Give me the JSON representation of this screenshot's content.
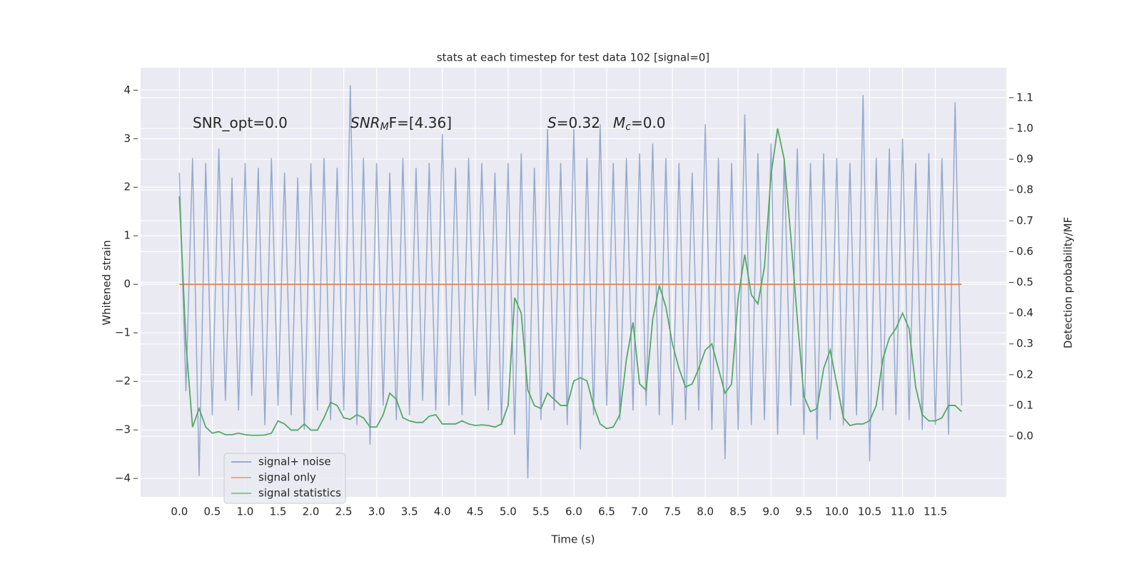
{
  "chart_data": {
    "type": "line",
    "title": "stats at each timestep for test data 102 [signal=0]",
    "xlabel": "Time (s)",
    "ylabel": "Whitened strain",
    "y2label": "Detection probability/MF",
    "grid": true,
    "legend": "lower left",
    "xlim": [
      -0.59,
      12.58
    ],
    "ylim": [
      -4.38,
      4.46
    ],
    "y2lim": [
      -0.197,
      1.197
    ],
    "xticks": [
      {
        "value": 0,
        "label": "0.0"
      },
      {
        "value": 0.5,
        "label": "0.5"
      },
      {
        "value": 1,
        "label": "1.0"
      },
      {
        "value": 1.5,
        "label": "1.5"
      },
      {
        "value": 2,
        "label": "2.0"
      },
      {
        "value": 2.5,
        "label": "2.5"
      },
      {
        "value": 3,
        "label": "3.0"
      },
      {
        "value": 3.5,
        "label": "3.5"
      },
      {
        "value": 4,
        "label": "4.0"
      },
      {
        "value": 4.5,
        "label": "4.5"
      },
      {
        "value": 5,
        "label": "5.0"
      },
      {
        "value": 5.5,
        "label": "5.5"
      },
      {
        "value": 6,
        "label": "6.0"
      },
      {
        "value": 6.5,
        "label": "6.5"
      },
      {
        "value": 7,
        "label": "7.0"
      },
      {
        "value": 7.5,
        "label": "7.5"
      },
      {
        "value": 8,
        "label": "8.0"
      },
      {
        "value": 8.5,
        "label": "8.5"
      },
      {
        "value": 9,
        "label": "9.0"
      },
      {
        "value": 9.5,
        "label": "9.5"
      },
      {
        "value": 10,
        "label": "10.0"
      },
      {
        "value": 10.5,
        "label": "10.5"
      },
      {
        "value": 11,
        "label": "11.0"
      },
      {
        "value": 11.5,
        "label": "11.5"
      }
    ],
    "yticks": [
      {
        "value": -4,
        "label": "−4"
      },
      {
        "value": -3,
        "label": "−3"
      },
      {
        "value": -2,
        "label": "−2"
      },
      {
        "value": -1,
        "label": "−1"
      },
      0,
      1,
      2,
      3,
      4
    ],
    "y2ticks": [
      {
        "value": 0,
        "label": "0.0"
      },
      {
        "value": 0.1,
        "label": "0.1"
      },
      {
        "value": 0.2,
        "label": "0.2"
      },
      {
        "value": 0.3,
        "label": "0.3"
      },
      {
        "value": 0.4,
        "label": "0.4"
      },
      {
        "value": 0.5,
        "label": "0.5"
      },
      {
        "value": 0.6,
        "label": "0.6"
      },
      {
        "value": 0.7,
        "label": "0.7"
      },
      {
        "value": 0.8,
        "label": "0.8"
      },
      {
        "value": 0.9,
        "label": "0.9"
      },
      {
        "value": 1,
        "label": "1.0"
      },
      {
        "value": 1.1,
        "label": "1.1"
      }
    ],
    "annotations": [
      {
        "main": "SNR_opt=0.0",
        "sub": "",
        "rest": ""
      },
      {
        "main": "SNR",
        "sub": "M",
        "rest": "F=[4.36]"
      },
      {
        "main": "S",
        "sub": "",
        "rest": "=0.32"
      },
      {
        "main": "M",
        "sub": "c",
        "rest": "=0.0"
      }
    ],
    "x": [
      0,
      0.1,
      0.2,
      0.3,
      0.4,
      0.5,
      0.6,
      0.7,
      0.8,
      0.9,
      1,
      1.1,
      1.2,
      1.3,
      1.4,
      1.5,
      1.6,
      1.7,
      1.8,
      1.9,
      2,
      2.1,
      2.2,
      2.3,
      2.4,
      2.5,
      2.6,
      2.7,
      2.8,
      2.9,
      3,
      3.1,
      3.2,
      3.3,
      3.4,
      3.5,
      3.6,
      3.7,
      3.8,
      3.9,
      4,
      4.1,
      4.2,
      4.3,
      4.4,
      4.5,
      4.6,
      4.7,
      4.8,
      4.9,
      5,
      5.1,
      5.2,
      5.3,
      5.4,
      5.5,
      5.6,
      5.7,
      5.8,
      5.9,
      6,
      6.1,
      6.2,
      6.3,
      6.4,
      6.5,
      6.6,
      6.7,
      6.8,
      6.9,
      7,
      7.1,
      7.2,
      7.3,
      7.4,
      7.5,
      7.6,
      7.7,
      7.8,
      7.9,
      8,
      8.1,
      8.2,
      8.3,
      8.4,
      8.5,
      8.6,
      8.7,
      8.8,
      8.9,
      9,
      9.1,
      9.2,
      9.3,
      9.4,
      9.5,
      9.6,
      9.7,
      9.8,
      9.9,
      10,
      10.1,
      10.2,
      10.3,
      10.4,
      10.5,
      10.6,
      10.7,
      10.8,
      10.9,
      11,
      11.1,
      11.2,
      11.3,
      11.4,
      11.5,
      11.6,
      11.7,
      11.8,
      11.9
    ],
    "series": [
      {
        "name": "signal+ noise",
        "color": "#4c72b0",
        "values": [
          2.3,
          -2.2,
          2.6,
          -3.95,
          2.5,
          -2.7,
          2.8,
          -2.4,
          2.2,
          -2.6,
          2.5,
          -2.3,
          2.4,
          -2.9,
          2.6,
          -2.5,
          2.3,
          -2.7,
          2.2,
          -3.0,
          2.5,
          -2.6,
          2.6,
          -2.8,
          2.4,
          -2.6,
          4.1,
          -2.9,
          2.6,
          -3.3,
          2.5,
          -2.5,
          2.3,
          -2.8,
          2.6,
          -2.7,
          2.4,
          -2.4,
          2.5,
          -2.6,
          3.1,
          -2.5,
          2.4,
          -2.7,
          2.6,
          -2.3,
          2.5,
          -2.6,
          2.3,
          -2.9,
          2.5,
          -3.1,
          2.7,
          -4.0,
          2.4,
          -2.8,
          3.2,
          -2.6,
          2.5,
          -2.9,
          3.2,
          -3.4,
          2.6,
          -2.7,
          3.3,
          -2.5,
          2.5,
          -2.8,
          2.6,
          -2.6,
          2.7,
          -2.5,
          2.9,
          -2.7,
          2.6,
          -2.9,
          2.5,
          -2.8,
          2.3,
          -2.6,
          3.3,
          -3.0,
          2.6,
          -3.6,
          2.5,
          -3.0,
          3.5,
          -2.9,
          2.7,
          -2.8,
          2.9,
          -3.1,
          2.6,
          -2.5,
          2.8,
          -3.1,
          2.5,
          -3.2,
          2.7,
          -2.8,
          2.6,
          -2.9,
          2.5,
          -2.7,
          3.9,
          -3.65,
          2.6,
          -2.6,
          2.8,
          -2.7,
          3.0,
          -2.8,
          2.5,
          -3.0,
          2.7,
          -2.9,
          2.6,
          -3.1,
          3.75,
          -2.5
        ]
      },
      {
        "name": "signal only",
        "color": "#dd8452",
        "values": [
          0,
          0,
          0,
          0,
          0,
          0,
          0,
          0,
          0,
          0,
          0,
          0,
          0,
          0,
          0,
          0,
          0,
          0,
          0,
          0,
          0,
          0,
          0,
          0,
          0,
          0,
          0,
          0,
          0,
          0,
          0,
          0,
          0,
          0,
          0,
          0,
          0,
          0,
          0,
          0,
          0,
          0,
          0,
          0,
          0,
          0,
          0,
          0,
          0,
          0,
          0,
          0,
          0,
          0,
          0,
          0,
          0,
          0,
          0,
          0,
          0,
          0,
          0,
          0,
          0,
          0,
          0,
          0,
          0,
          0,
          0,
          0,
          0,
          0,
          0,
          0,
          0,
          0,
          0,
          0,
          0,
          0,
          0,
          0,
          0,
          0,
          0,
          0,
          0,
          0,
          0,
          0,
          0,
          0,
          0,
          0,
          0,
          0,
          0,
          0,
          0,
          0,
          0,
          0,
          0,
          0,
          0,
          0,
          0,
          0,
          0,
          0,
          0,
          0,
          0,
          0,
          0,
          0,
          0,
          0
        ]
      },
      {
        "name": "signal statistics",
        "color": "#55a868",
        "axis": "y2",
        "values": [
          0.78,
          0.3,
          0.03,
          0.09,
          0.03,
          0.01,
          0.015,
          0.005,
          0.005,
          0.01,
          0.005,
          0.003,
          0.003,
          0.004,
          0.01,
          0.05,
          0.04,
          0.02,
          0.02,
          0.04,
          0.02,
          0.02,
          0.06,
          0.11,
          0.1,
          0.06,
          0.055,
          0.07,
          0.06,
          0.03,
          0.03,
          0.07,
          0.14,
          0.12,
          0.06,
          0.05,
          0.045,
          0.045,
          0.065,
          0.07,
          0.04,
          0.04,
          0.04,
          0.05,
          0.04,
          0.035,
          0.037,
          0.035,
          0.03,
          0.04,
          0.1,
          0.45,
          0.4,
          0.15,
          0.1,
          0.09,
          0.14,
          0.12,
          0.1,
          0.1,
          0.18,
          0.19,
          0.18,
          0.1,
          0.04,
          0.025,
          0.03,
          0.07,
          0.25,
          0.37,
          0.17,
          0.15,
          0.38,
          0.49,
          0.42,
          0.3,
          0.22,
          0.16,
          0.17,
          0.22,
          0.28,
          0.3,
          0.22,
          0.14,
          0.17,
          0.45,
          0.59,
          0.46,
          0.43,
          0.55,
          0.85,
          1.0,
          0.9,
          0.65,
          0.38,
          0.13,
          0.08,
          0.09,
          0.22,
          0.28,
          0.17,
          0.06,
          0.035,
          0.04,
          0.04,
          0.05,
          0.1,
          0.25,
          0.32,
          0.35,
          0.4,
          0.35,
          0.16,
          0.07,
          0.05,
          0.05,
          0.06,
          0.1,
          0.1,
          0.08
        ]
      }
    ]
  }
}
